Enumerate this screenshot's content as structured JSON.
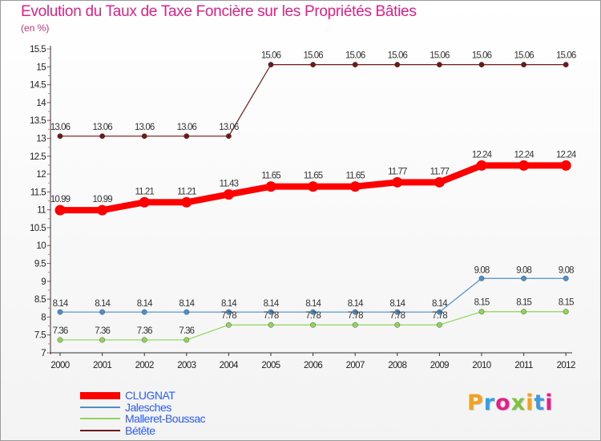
{
  "chart_data": {
    "type": "line",
    "title": "Evolution du Taux de Taxe Foncière sur les Propriétés Bâties",
    "ylabel": "(en %)",
    "xlabel": "",
    "categories": [
      "2000",
      "2001",
      "2002",
      "2003",
      "2004",
      "2005",
      "2006",
      "2007",
      "2008",
      "2009",
      "2010",
      "2011",
      "2012"
    ],
    "ylim": [
      7,
      15.5
    ],
    "yticks": [
      "7",
      "7.5",
      "8",
      "8.5",
      "9",
      "9.5",
      "10",
      "10.5",
      "11",
      "11.5",
      "12",
      "12.5",
      "13",
      "13.5",
      "14",
      "14.5",
      "15",
      "15.5"
    ],
    "series": [
      {
        "name": "CLUGNAT",
        "color": "#ff0000",
        "values": [
          10.99,
          10.99,
          11.21,
          11.21,
          11.43,
          11.65,
          11.65,
          11.65,
          11.77,
          11.77,
          12.24,
          12.24,
          12.24
        ],
        "labels": [
          "10.99",
          "10.99",
          "11.21",
          "11.21",
          "11.43",
          "11.65",
          "11.65",
          "11.65",
          "11.77",
          "11.77",
          "12.24",
          "12.24",
          "12.24"
        ]
      },
      {
        "name": "Jalesches",
        "color": "#4f8fc9",
        "values": [
          8.14,
          8.14,
          8.14,
          8.14,
          8.14,
          8.14,
          8.14,
          8.14,
          8.14,
          8.14,
          9.08,
          9.08,
          9.08
        ],
        "labels": [
          "8.14",
          "8.14",
          "8.14",
          "8.14",
          "8.14",
          "8.14",
          "8.14",
          "8.14",
          "8.14",
          "8.14",
          "9.08",
          "9.08",
          "9.08"
        ]
      },
      {
        "name": "Malleret-Boussac",
        "color": "#90d45a",
        "values": [
          7.36,
          7.36,
          7.36,
          7.36,
          7.78,
          7.78,
          7.78,
          7.78,
          7.78,
          7.78,
          8.15,
          8.15,
          8.15
        ],
        "labels": [
          "7.36",
          "7.36",
          "7.36",
          "7.36",
          "7.78",
          "7.78",
          "7.78",
          "7.78",
          "7.78",
          "7.78",
          "8.15",
          "8.15",
          "8.15"
        ]
      },
      {
        "name": "Bétête",
        "color": "#6e1a1a",
        "values": [
          13.06,
          13.06,
          13.06,
          13.06,
          13.06,
          15.06,
          15.06,
          15.06,
          15.06,
          15.06,
          15.06,
          15.06,
          15.06
        ],
        "labels": [
          "13.06",
          "13.06",
          "13.06",
          "13.06",
          "13.06",
          "15.06",
          "15.06",
          "15.06",
          "15.06",
          "15.06",
          "15.06",
          "15.06",
          "15.06"
        ]
      }
    ],
    "legend_position": "bottom-left",
    "grid": false
  },
  "logo": {
    "letters": [
      "P",
      "r",
      "o",
      "x",
      "i",
      "t",
      "i"
    ],
    "colors": [
      "#f0a21e",
      "#3a9de0",
      "#e0218a",
      "#7fc241",
      "#f0a21e",
      "#3a9de0",
      "#e0218a"
    ]
  }
}
